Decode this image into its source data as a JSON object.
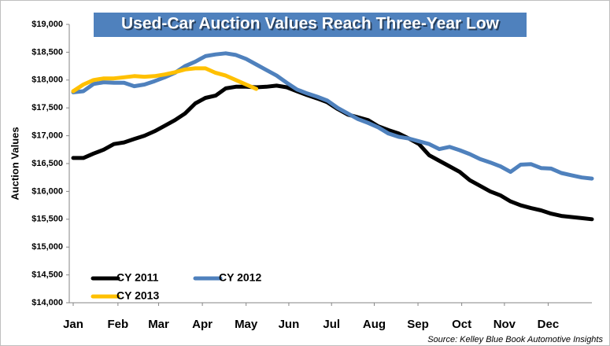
{
  "chart_data": {
    "type": "line",
    "title": "Used-Car Auction Values Reach Three-Year Low",
    "y_label": "Auction Values",
    "source": "Source: Kelley Blue Book Automotive Insights",
    "x": [
      0,
      1,
      2,
      3,
      4,
      5,
      6,
      7,
      8,
      9,
      10,
      11,
      12,
      13,
      14,
      15,
      16,
      17,
      18,
      19,
      20,
      21,
      22,
      23,
      24,
      25,
      26,
      27,
      28,
      29,
      30,
      31,
      32,
      33,
      34,
      35,
      36,
      37,
      38,
      39,
      40,
      41,
      42,
      43,
      44,
      45,
      46,
      47,
      48,
      49,
      50,
      51
    ],
    "xlim": [
      0,
      51
    ],
    "xticks": [
      {
        "value": 0,
        "label": "Jan"
      },
      {
        "value": 4.4,
        "label": "Feb"
      },
      {
        "value": 8.4,
        "label": "Mar"
      },
      {
        "value": 12.7,
        "label": "Apr"
      },
      {
        "value": 17.0,
        "label": "May"
      },
      {
        "value": 21.2,
        "label": "Jun"
      },
      {
        "value": 25.4,
        "label": "Jul"
      },
      {
        "value": 29.6,
        "label": "Aug"
      },
      {
        "value": 33.9,
        "label": "Sep"
      },
      {
        "value": 38.2,
        "label": "Oct"
      },
      {
        "value": 42.4,
        "label": "Nov"
      },
      {
        "value": 46.7,
        "label": "Dec"
      }
    ],
    "ylim": [
      14000,
      19000
    ],
    "yticks": [
      {
        "value": 14000,
        "label": "$14,000"
      },
      {
        "value": 14500,
        "label": "$14,500"
      },
      {
        "value": 15000,
        "label": "$15,000"
      },
      {
        "value": 15500,
        "label": "$15,500"
      },
      {
        "value": 16000,
        "label": "$16,000"
      },
      {
        "value": 16500,
        "label": "$16,500"
      },
      {
        "value": 17000,
        "label": "$17,000"
      },
      {
        "value": 17500,
        "label": "$17,500"
      },
      {
        "value": 18000,
        "label": "$18,000"
      },
      {
        "value": 18500,
        "label": "$18,500"
      },
      {
        "value": 19000,
        "label": "$19,000"
      }
    ],
    "grid": false,
    "legend": "lower left",
    "series": [
      {
        "name": "CY 2011",
        "color": "#000000",
        "values": [
          16600,
          16600,
          16680,
          16750,
          16850,
          16880,
          16940,
          17000,
          17080,
          17180,
          17280,
          17400,
          17580,
          17680,
          17720,
          17850,
          17880,
          17880,
          17870,
          17880,
          17900,
          17870,
          17800,
          17730,
          17670,
          17600,
          17480,
          17380,
          17330,
          17280,
          17170,
          17100,
          17040,
          16950,
          16850,
          16650,
          16550,
          16450,
          16350,
          16200,
          16100,
          16000,
          15930,
          15820,
          15750,
          15700,
          15660,
          15600,
          15560,
          15540,
          15520,
          15500
        ]
      },
      {
        "name": "CY 2012",
        "color": "#4f81bd",
        "values": [
          17780,
          17800,
          17930,
          17960,
          17950,
          17950,
          17890,
          17920,
          17980,
          18050,
          18130,
          18250,
          18330,
          18430,
          18460,
          18480,
          18450,
          18380,
          18280,
          18180,
          18080,
          17950,
          17830,
          17760,
          17700,
          17630,
          17500,
          17400,
          17300,
          17230,
          17150,
          17040,
          16980,
          16950,
          16900,
          16850,
          16760,
          16800,
          16740,
          16670,
          16580,
          16520,
          16450,
          16350,
          16480,
          16490,
          16420,
          16410,
          16330,
          16290,
          16250,
          16230
        ]
      },
      {
        "name": "CY 2013",
        "color": "#ffc000",
        "values": [
          17800,
          17920,
          18000,
          18030,
          18030,
          18050,
          18070,
          18060,
          18070,
          18100,
          18140,
          18190,
          18210,
          18210,
          18130,
          18080,
          18000,
          17920,
          17840,
          null,
          null,
          null,
          null,
          null,
          null,
          null,
          null,
          null,
          null,
          null,
          null,
          null,
          null,
          null,
          null,
          null,
          null,
          null,
          null,
          null,
          null,
          null,
          null,
          null,
          null,
          null,
          null,
          null,
          null,
          null,
          null,
          null
        ]
      }
    ]
  }
}
